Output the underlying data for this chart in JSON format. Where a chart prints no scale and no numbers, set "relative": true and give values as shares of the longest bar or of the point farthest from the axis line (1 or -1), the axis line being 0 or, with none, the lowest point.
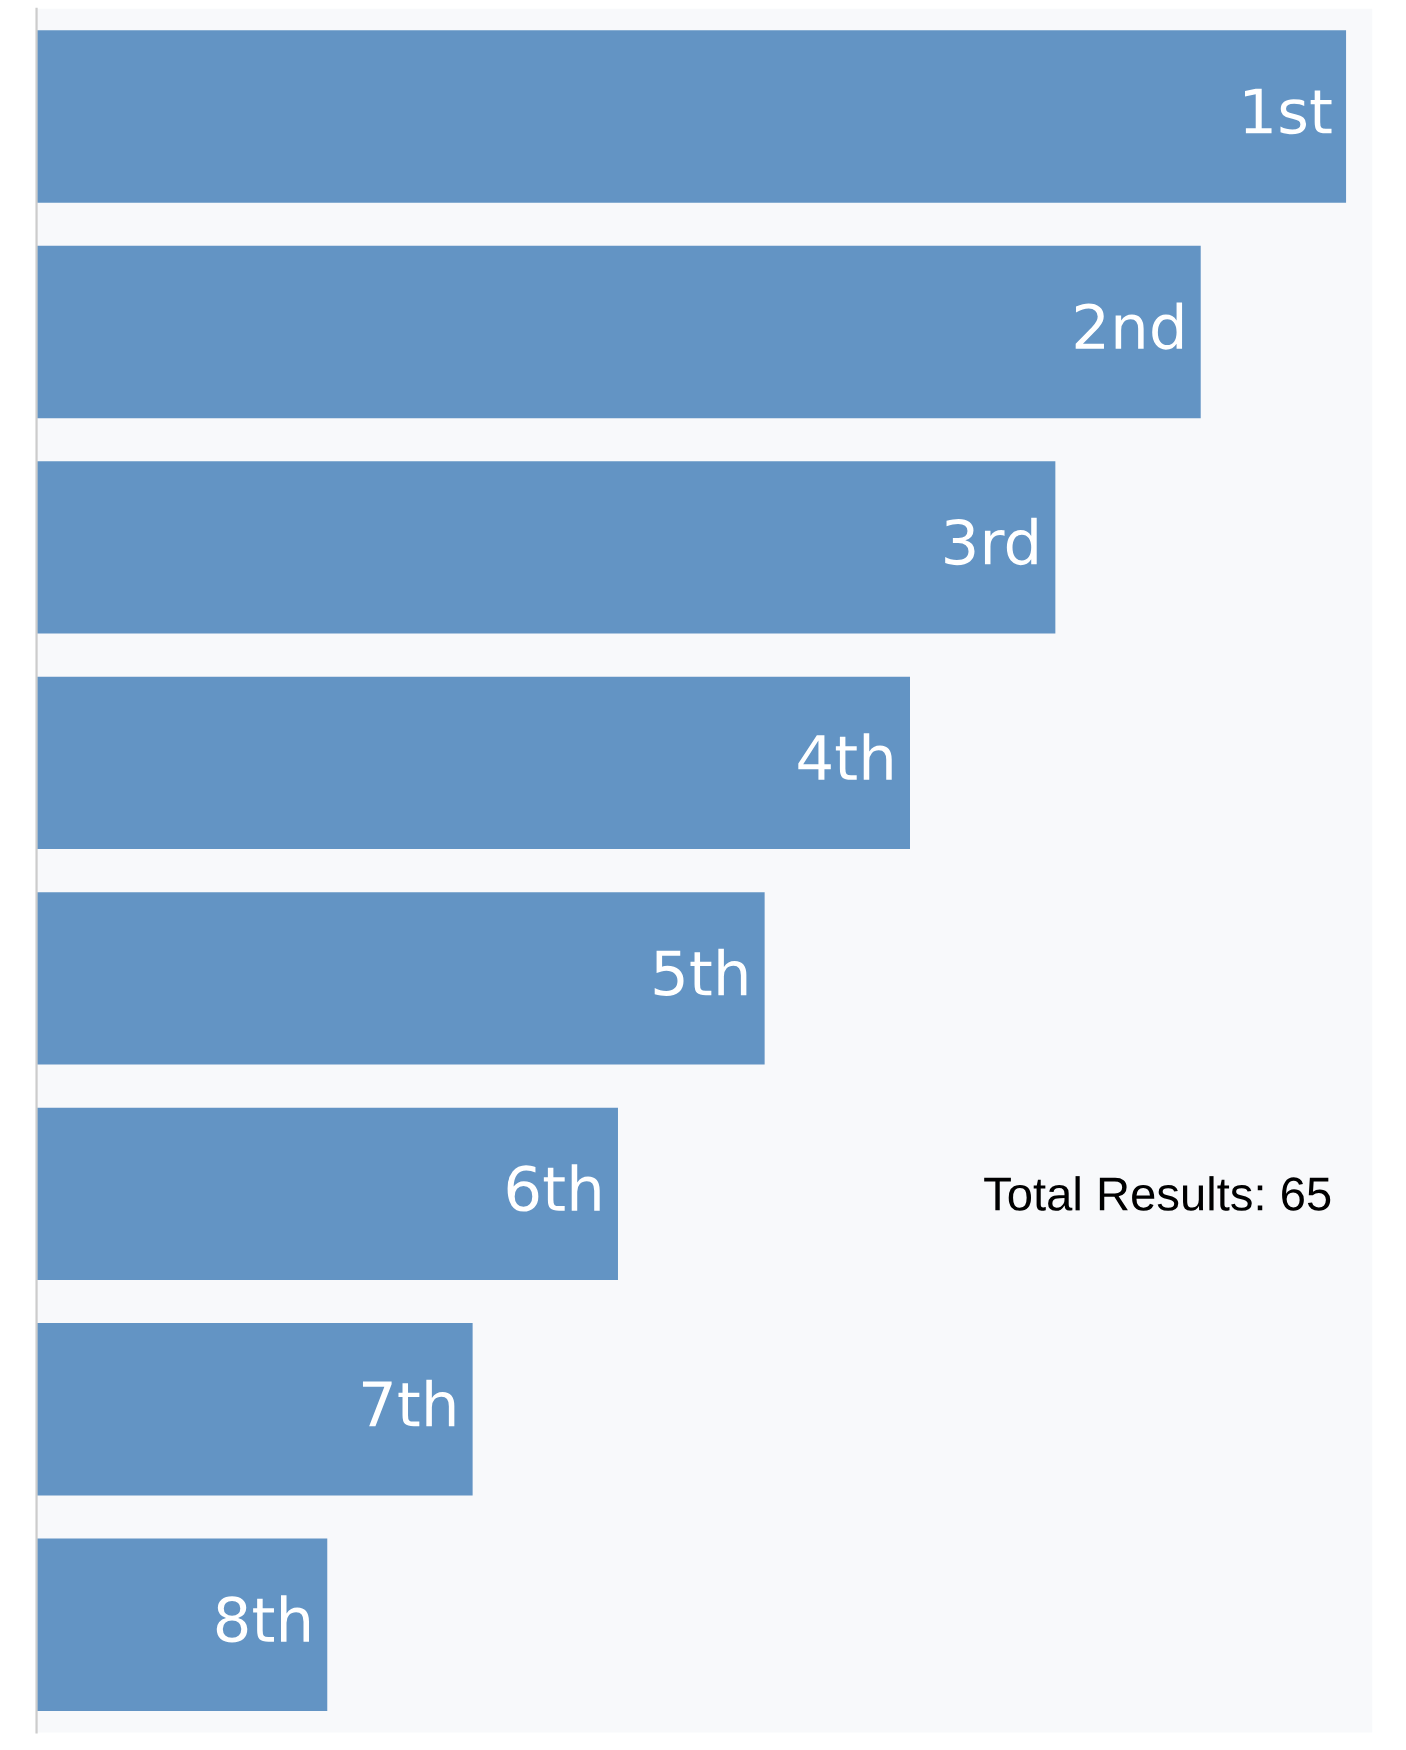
{
  "chart_data": {
    "type": "bar",
    "orientation": "horizontal",
    "relative": true,
    "categories": [
      "1st",
      "2nd",
      "3rd",
      "4th",
      "5th",
      "6th",
      "7th",
      "8th"
    ],
    "values": [
      1,
      0.889,
      0.778,
      0.667,
      0.556,
      0.444,
      0.333,
      0.222
    ],
    "color": "#6394c4",
    "annotations": [
      "Total Results: 65"
    ],
    "legend": false
  }
}
